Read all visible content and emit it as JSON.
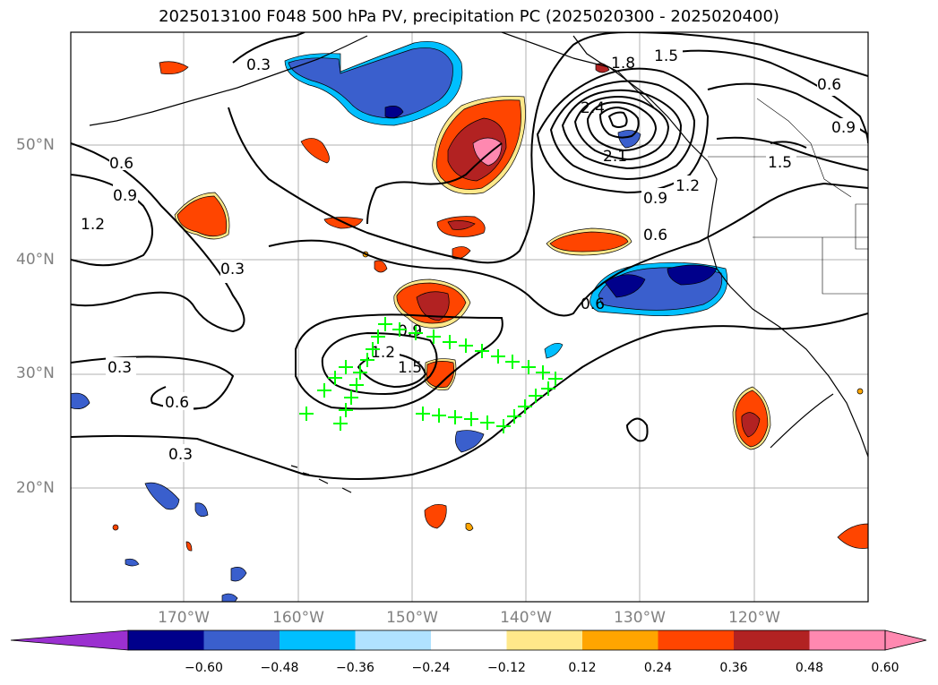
{
  "title": "2025013100 F048 500 hPa PV, precipitation PC (2025020300 - 2025020400)",
  "lat_labels": [
    "50°N",
    "40°N",
    "30°N",
    "20°N"
  ],
  "lon_labels": [
    "170°W",
    "160°W",
    "150°W",
    "140°W",
    "130°W",
    "120°W"
  ],
  "contour_labels": [
    "0.3",
    "0.6",
    "0.9",
    "1.2",
    "0.3",
    "1.8",
    "1.5",
    "2.4",
    "2.1",
    "0.9",
    "1.2",
    "1.5",
    "0.6",
    "0.9",
    "0.6",
    "0.6",
    "0.9",
    "1.2",
    "1.5",
    "0.3",
    "0.6",
    "0.3"
  ],
  "colorbar": {
    "ticks": [
      "−0.60",
      "−0.48",
      "−0.36",
      "−0.24",
      "−0.12",
      "0.12",
      "0.24",
      "0.36",
      "0.48",
      "0.60"
    ],
    "colors": [
      "#9b30d0",
      "#00008b",
      "#3a5fcd",
      "#00bfff",
      "#b0e2ff",
      "#ffffff",
      "#ffe88a",
      "#ffa500",
      "#ff4500",
      "#b22222",
      "#ff88b0",
      "#ff88b0"
    ]
  },
  "marker_color": "#00ff00"
}
